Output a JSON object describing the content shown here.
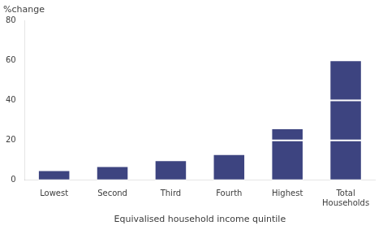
{
  "chart_data": {
    "type": "bar",
    "stacked": true,
    "categories": [
      "Lowest",
      "Second",
      "Third",
      "Fourth",
      "Highest",
      "Total\nHouseholds"
    ],
    "series": [
      {
        "values": [
          5,
          7,
          10,
          13,
          20,
          20
        ]
      },
      {
        "values": [
          0,
          0,
          0,
          0,
          6,
          20
        ]
      },
      {
        "values": [
          0,
          0,
          0,
          0,
          0,
          20
        ]
      }
    ],
    "color": "#3d4480",
    "ylabel": "%change",
    "xlabel": "Equivalised household income quintile",
    "ylim": [
      0,
      80
    ],
    "yticks": [
      0,
      20,
      40,
      60,
      80
    ],
    "grid": false
  }
}
